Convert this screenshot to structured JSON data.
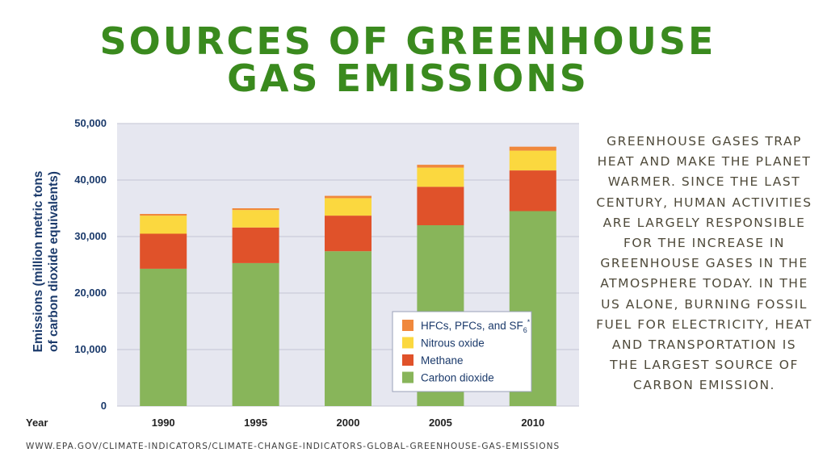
{
  "title": {
    "line1": "SOURCES OF GREENHOUSE",
    "line2": "GAS EMISSIONS"
  },
  "side_text": "Greenhouse gases trap heat and make the planet warmer. Since the last century, human activities are largely responsible for the increase in greenhouse gases in the atmosphere today. In the US alone, burning fossil fuel for electricity, heat and transportation is the largest source of carbon emission.",
  "source": "WWW.EPA.GOV/CLIMATE-INDICATORS/CLIMATE-CHANGE-INDICATORS-GLOBAL-GREENHOUSE-GAS-EMISSIONS",
  "chart_data": {
    "type": "bar",
    "stacked": true,
    "xlabel": "Year",
    "ylabel_lines": [
      "Emissions (million metric tons",
      "of carbon dioxide equivalents)"
    ],
    "categories": [
      "1990",
      "1995",
      "2000",
      "2005",
      "2010"
    ],
    "ylim": [
      0,
      50000
    ],
    "yticks": [
      0,
      10000,
      20000,
      30000,
      40000,
      50000
    ],
    "ytick_labels": [
      "0",
      "10,000",
      "20,000",
      "30,000",
      "40,000",
      "50,000"
    ],
    "grid": true,
    "legend_position": "bottom-right",
    "series": [
      {
        "name": "Carbon dioxide",
        "color": "#88b55a",
        "values": [
          24300,
          25300,
          27400,
          32000,
          34500
        ]
      },
      {
        "name": "Methane",
        "color": "#e0522a",
        "values": [
          6200,
          6300,
          6300,
          6800,
          7200
        ]
      },
      {
        "name": "Nitrous oxide",
        "color": "#fbd83f",
        "values": [
          3200,
          3100,
          3100,
          3400,
          3500
        ]
      },
      {
        "name": "HFCs, PFCs, and SF",
        "subscript": "6",
        "superscript": "*",
        "color": "#f0883c",
        "values": [
          300,
          300,
          400,
          500,
          700
        ]
      }
    ],
    "colors": {
      "plot_background": "#e6e7f0",
      "axis_text": "#1b3a6b"
    }
  }
}
